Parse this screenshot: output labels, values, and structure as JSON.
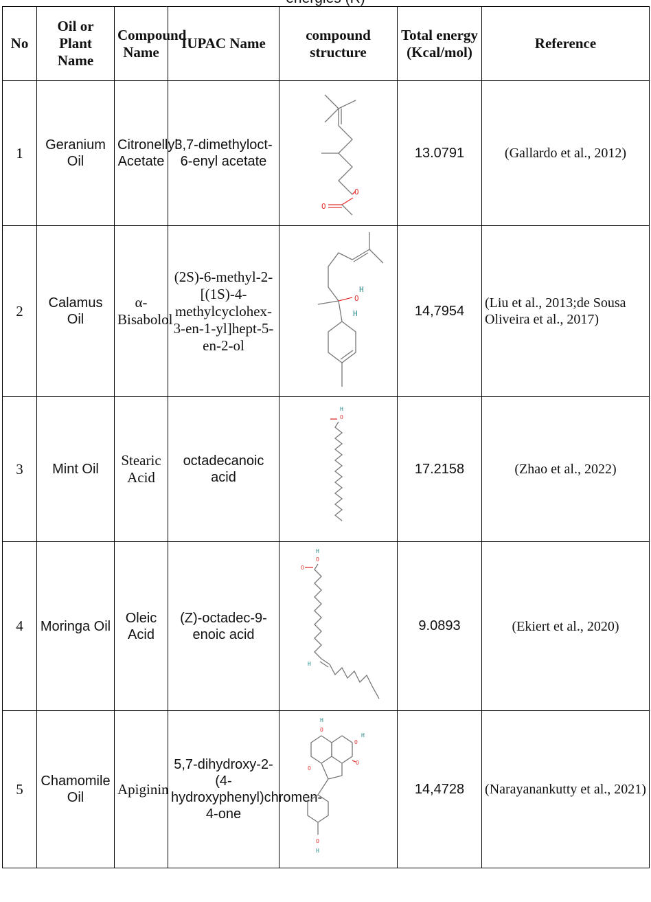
{
  "caption_tail": "energies (R)",
  "headers": {
    "no": "No",
    "plant": "Oil or Plant Name",
    "compound": "Compound Name",
    "iupac": "IUPAC Name",
    "structure": "compound structure",
    "energy": "Total energy (Kcal/mol)",
    "reference": "Reference"
  },
  "rows": [
    {
      "no": "1",
      "plant": "Geranium Oil",
      "compound": "Citronellyl Acetate",
      "iupac": "3,7-dimethyloct-6-enyl acetate",
      "structure_icon": "citronellyl-acetate-structure",
      "energy": "13.0791",
      "reference": "(Gallardo et al., 2012)"
    },
    {
      "no": "2",
      "plant": "Calamus Oil",
      "compound": "α-Bisabolol",
      "iupac": "(2S)-6-methyl-2-[(1S)-4-methylcyclohex-3-en-1-yl]hept-5-en-2-ol",
      "structure_icon": "bisabolol-structure",
      "energy": "14,7954",
      "reference": "(Liu et al., 2013;de Sousa Oliveira et al., 2017)"
    },
    {
      "no": "3",
      "plant": "Mint Oil",
      "compound": "Stearic Acid",
      "iupac": "octadecanoic acid",
      "structure_icon": "stearic-acid-structure",
      "energy": "17.2158",
      "reference": "(Zhao et al., 2022)"
    },
    {
      "no": "4",
      "plant": "Moringa Oil",
      "compound": "Oleic Acid",
      "iupac": "(Z)-octadec-9-enoic acid",
      "structure_icon": "oleic-acid-structure",
      "energy": "9.0893",
      "reference": "(Ekiert et al., 2020)"
    },
    {
      "no": "5",
      "plant": "Chamomile Oil",
      "compound": "Apiginin",
      "iupac": "5,7-dihydroxy-2-(4-hydroxyphenyl)chromen-4-one",
      "structure_icon": "apigenin-structure",
      "energy": "14,4728",
      "reference": "(Narayanankutty et al., 2021)"
    }
  ],
  "atom_labels": {
    "o": "O",
    "h": "H"
  },
  "colors": {
    "oxygen": "#e53030",
    "hydrogen": "#2a8c8c",
    "bond": "#777777",
    "border": "#000000"
  }
}
